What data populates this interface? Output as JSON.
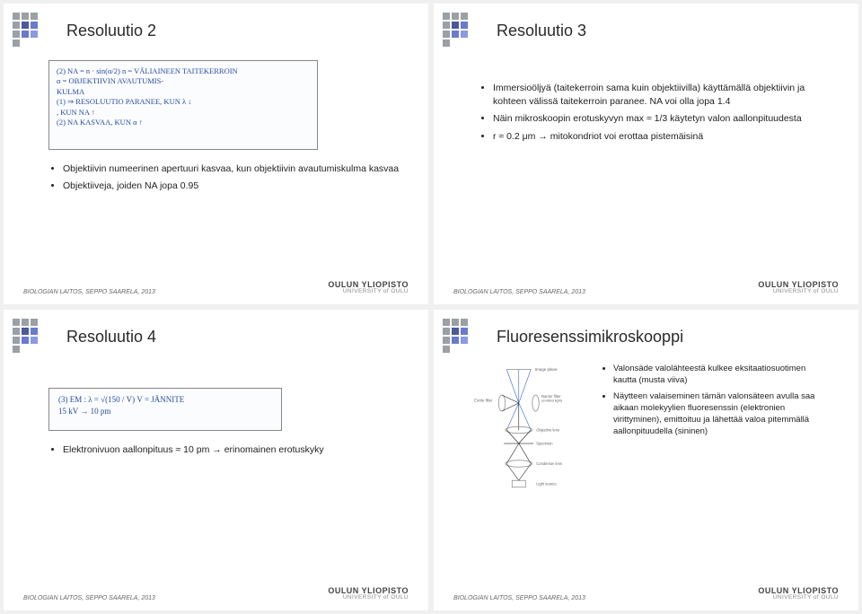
{
  "deco": {
    "grays": "#9aa0a4",
    "purples": [
      "#4a5a9a",
      "#6a7acc",
      "#8a9ae0"
    ]
  },
  "footer": {
    "left": "BIOLOGIAN LAITOS, SEPPO SAARELA, 2013",
    "uni_fi": "OULUN YLIOPISTO",
    "uni_en": "UNIVERSITY of OULU"
  },
  "slide1": {
    "title": "Resoluutio 2",
    "hw": {
      "l1": "(2)  NA = n · sin(α/2)     n = VÄLIAINEEN TAITEKERROIN",
      "l2": "                         α = OBJEKTIIVIN AVAUTUMIS-",
      "l3": "                              KULMA",
      "l4": "(1) ⇒  RESOLUUTIO PARANEE, KUN  λ ↓",
      "l5": "                                , KUN  NA ↑",
      "l6": "(2)  NA KASVAA, KUN α ↑"
    },
    "b1": "Objektiivin numeerinen apertuuri kasvaa, kun objektiivin avautumiskulma kasvaa",
    "b2": "Objektiiveja, joiden NA jopa 0.95"
  },
  "slide2": {
    "title": "Resoluutio 3",
    "b1": "Immersioöljyä (taitekerroin sama kuin objektiivilla) käyttämällä objektiivin ja kohteen välissä taitekerroin paranee. NA voi olla jopa 1.4",
    "b2": "Näin mikroskoopin erotuskyvyn max ≈ 1/3 käytetyn valon aallonpituudesta",
    "b3": "r ≈ 0.2 μm → mitokondriot voi erottaa pistemäisinä"
  },
  "slide3": {
    "title": "Resoluutio 4",
    "hw": {
      "l1": "(3)   EM :  λ = √(150 / V)        V = JÄNNITE",
      "l2": "      15 kV  →  10 pm"
    },
    "b1": "Elektronivuon aallonpituus ≈ 10 pm → erinomainen erotuskyky"
  },
  "slide4": {
    "title": "Fluoresenssimikroskooppi",
    "b1": "Valonsäde valolähteestä kulkee eksitaatiosuotimen kautta (musta viiva)",
    "b2": "Näytteen valaiseminen tämän valonsäteen avulla saa aikaan molekyylien fluoresenssin (elektronien virittyminen), emittoituu ja lähettää valoa pitemmällä aallonpituudella (sininen)",
    "diagram": {
      "labels": {
        "top": "Image plane",
        "excite": "Excite filter",
        "barrier": "Barrier filter",
        "obj": "Objective lens",
        "spec": "Specimen",
        "cond": "Condenser lens",
        "light": "Light source"
      },
      "excite_color": "#447744",
      "emit_color": "#3a66cc",
      "line_color": "#888888",
      "bg": "#fefefe"
    }
  }
}
